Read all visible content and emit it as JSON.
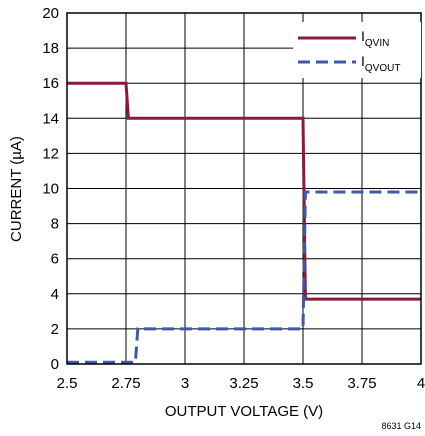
{
  "chart_data": {
    "type": "line",
    "xlabel": "OUTPUT VOLTAGE (V)",
    "ylabel": "CURRENT (µA)",
    "xlim": [
      2.5,
      4.0
    ],
    "ylim": [
      0,
      20
    ],
    "x_ticks": [
      2.5,
      2.75,
      3.0,
      3.25,
      3.5,
      3.75,
      4.0
    ],
    "x_tick_labels": [
      "2.5",
      "2.75",
      "3",
      "3.25",
      "3.5",
      "3.75",
      "4"
    ],
    "y_ticks": [
      0,
      2,
      4,
      6,
      8,
      10,
      12,
      14,
      16,
      18,
      20
    ],
    "y_tick_labels": [
      "0",
      "2",
      "4",
      "6",
      "8",
      "10",
      "12",
      "14",
      "16",
      "18",
      "20"
    ],
    "grid": true,
    "legend_position": "top-right",
    "series": [
      {
        "name": "I",
        "name_subscript": "QVIN",
        "color": "#8b1a3a",
        "style": "solid",
        "x": [
          2.5,
          2.75,
          2.76,
          3.49,
          3.5,
          3.51,
          4.0
        ],
        "y": [
          16.0,
          16.0,
          14.0,
          14.0,
          14.0,
          3.7,
          3.7
        ]
      },
      {
        "name": "I",
        "name_subscript": "QVOUT",
        "color": "#3d5aa8",
        "style": "dashed",
        "x": [
          2.5,
          2.79,
          2.8,
          3.49,
          3.5,
          3.51,
          4.0
        ],
        "y": [
          0.1,
          0.1,
          2.0,
          2.0,
          2.0,
          9.8,
          9.8
        ]
      }
    ],
    "figure_code": "8631 G14"
  }
}
